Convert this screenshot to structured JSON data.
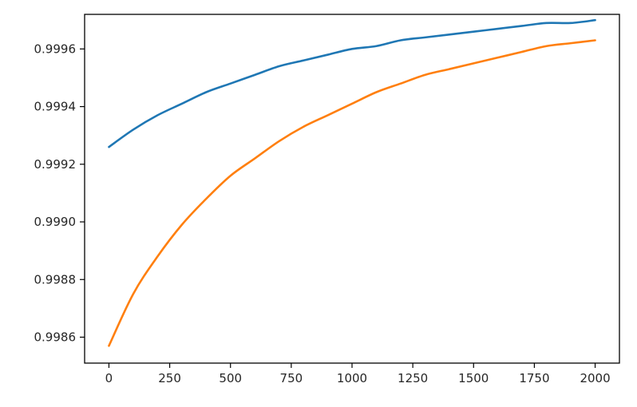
{
  "chart_data": {
    "type": "line",
    "title": "",
    "xlabel": "",
    "ylabel": "",
    "xlim": [
      -100,
      2100
    ],
    "ylim": [
      0.99851,
      0.99972
    ],
    "grid": false,
    "x_ticks": [
      0,
      250,
      500,
      750,
      1000,
      1250,
      1500,
      1750,
      2000
    ],
    "x_tick_labels": [
      "0",
      "250",
      "500",
      "750",
      "1000",
      "1250",
      "1500",
      "1750",
      "2000"
    ],
    "y_ticks": [
      0.9986,
      0.9988,
      0.999,
      0.9992,
      0.9994,
      0.9996
    ],
    "y_tick_labels": [
      "0.9986",
      "0.9988",
      "0.9990",
      "0.9992",
      "0.9994",
      "0.9996"
    ],
    "series": [
      {
        "color": "#1f77b4",
        "x": [
          0,
          100,
          200,
          300,
          400,
          500,
          600,
          700,
          800,
          900,
          1000,
          1100,
          1200,
          1300,
          1400,
          1500,
          1600,
          1700,
          1800,
          1900,
          2000
        ],
        "y": [
          0.99926,
          0.99932,
          0.99937,
          0.99941,
          0.99945,
          0.99948,
          0.99951,
          0.99954,
          0.99956,
          0.99958,
          0.9996,
          0.99961,
          0.99963,
          0.99964,
          0.99965,
          0.99966,
          0.99967,
          0.99968,
          0.99969,
          0.99969,
          0.9997
        ]
      },
      {
        "color": "#ff7f0e",
        "x": [
          0,
          100,
          200,
          300,
          400,
          500,
          600,
          700,
          800,
          900,
          1000,
          1100,
          1200,
          1300,
          1400,
          1500,
          1600,
          1700,
          1800,
          1900,
          2000
        ],
        "y": [
          0.99857,
          0.99875,
          0.99888,
          0.99899,
          0.99908,
          0.99916,
          0.99922,
          0.99928,
          0.99933,
          0.99937,
          0.99941,
          0.99945,
          0.99948,
          0.99951,
          0.99953,
          0.99955,
          0.99957,
          0.99959,
          0.99961,
          0.99962,
          0.99963
        ]
      }
    ]
  }
}
